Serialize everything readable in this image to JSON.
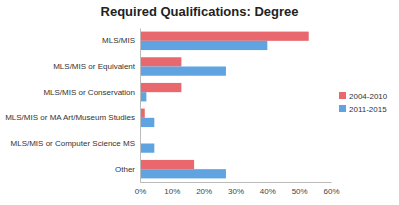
{
  "chart_data": {
    "type": "bar",
    "orientation": "horizontal",
    "title": "Required Qualifications: Degree",
    "categories": [
      "MLS/MIS",
      "MLS/MIS or Equivalent",
      "MLS/MIS or Conservation",
      "MLS/MIS or MA Art/Museum Studies",
      "MLS/MIS or Computer Science MS",
      "Other"
    ],
    "series": [
      {
        "name": "2004-2010",
        "color": "#e9686d",
        "values": [
          53,
          13,
          13,
          1.5,
          0,
          17
        ]
      },
      {
        "name": "2011-2015",
        "color": "#5fa4e0",
        "values": [
          40,
          27,
          2,
          4.5,
          4.5,
          27
        ]
      }
    ],
    "xlim": [
      0,
      60
    ],
    "xticks": [
      {
        "value": 0,
        "label": "0%"
      },
      {
        "value": 10,
        "label": "10%"
      },
      {
        "value": 20,
        "label": "20%"
      },
      {
        "value": 30,
        "label": "30%"
      },
      {
        "value": 40,
        "label": "40%"
      },
      {
        "value": 50,
        "label": "50%"
      },
      {
        "value": 60,
        "label": "60%"
      }
    ],
    "grid": false,
    "legend": "right"
  }
}
